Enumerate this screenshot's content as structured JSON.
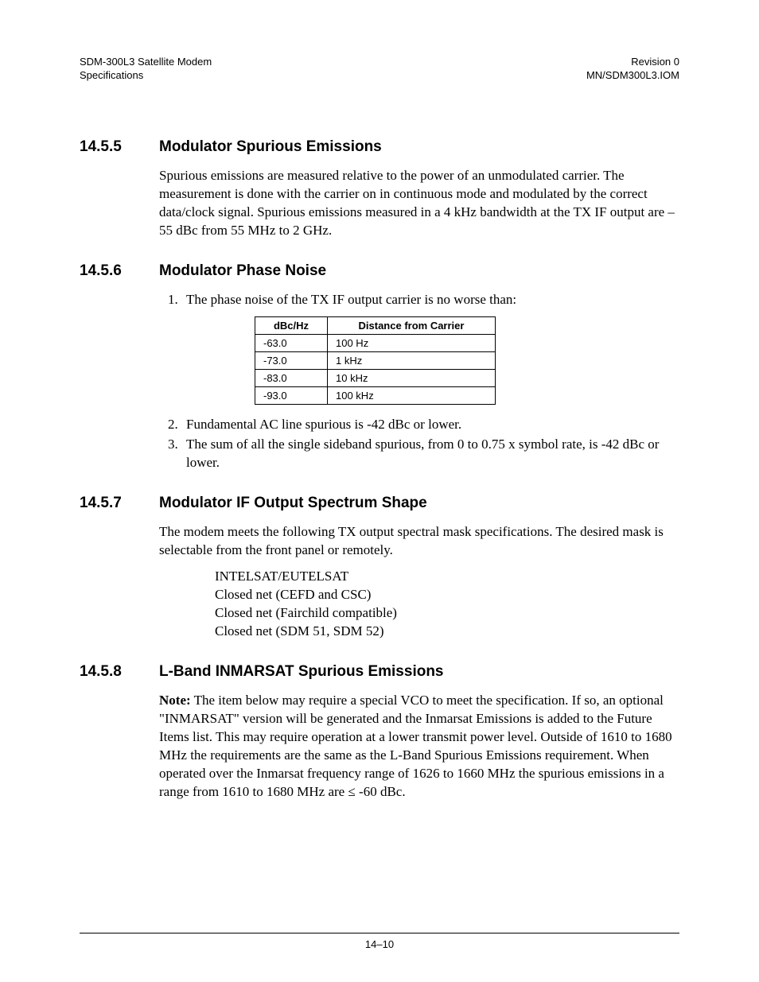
{
  "header": {
    "left_line1": "SDM-300L3 Satellite Modem",
    "left_line2": "Specifications",
    "right_line1": "Revision 0",
    "right_line2": "MN/SDM300L3.IOM"
  },
  "sections": {
    "s1": {
      "num": "14.5.5",
      "title": "Modulator Spurious Emissions",
      "para": "Spurious emissions are measured relative to the power of an unmodulated carrier. The measurement is done with the carrier on in continuous mode and modulated by the correct data/clock signal. Spurious emissions measured in a 4 kHz bandwidth at the TX IF output are –55 dBc from 55 MHz to 2 GHz."
    },
    "s2": {
      "num": "14.5.6",
      "title": "Modulator Phase Noise",
      "list1": "The phase noise of the TX IF output carrier is no worse than:",
      "list2": "Fundamental AC line spurious is -42 dBc or lower.",
      "list3": "The sum of all the single sideband spurious, from 0 to 0.75 x symbol rate, is -42 dBc or lower.",
      "table": {
        "col1_header": "dBc/Hz",
        "col2_header": "Distance from Carrier",
        "rows": [
          {
            "c1": "-63.0",
            "c2": "100 Hz"
          },
          {
            "c1": "-73.0",
            "c2": "1 kHz"
          },
          {
            "c1": "-83.0",
            "c2": "10 kHz"
          },
          {
            "c1": "-93.0",
            "c2": "100 kHz"
          }
        ]
      }
    },
    "s3": {
      "num": "14.5.7",
      "title": "Modulator IF Output Spectrum Shape",
      "para": "The modem meets the following TX output spectral mask specifications. The desired mask is selectable from the front panel or remotely.",
      "items": {
        "i1": "INTELSAT/EUTELSAT",
        "i2": "Closed net (CEFD and CSC)",
        "i3": "Closed net (Fairchild compatible)",
        "i4": "Closed net (SDM 51, SDM 52)"
      }
    },
    "s4": {
      "num": "14.5.8",
      "title": "L-Band INMARSAT Spurious Emissions",
      "note_label": "Note:",
      "para": " The item below may require a special VCO to meet the specification. If so, an optional \"INMARSAT\" version will be generated and the Inmarsat Emissions is added to the Future Items list. This may require operation at a lower transmit power level. Outside of 1610 to 1680 MHz the requirements are the same as the L-Band Spurious Emissions requirement. When operated over the Inmarsat frequency range of 1626 to 1660 MHz the spurious emissions in a range from 1610 to 1680 MHz are ≤ -60 dBc."
    }
  },
  "footer": {
    "page_num": "14–10"
  }
}
